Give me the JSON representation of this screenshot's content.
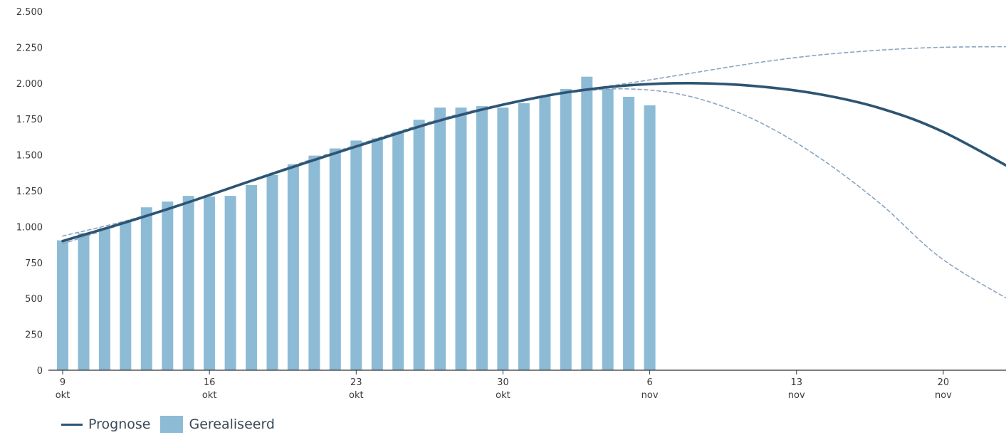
{
  "colors": {
    "bar": "#8dbbd6",
    "forecast": "#2d5573",
    "band": "#8ba5c0",
    "axis": "#333333",
    "text": "#3a3a3a"
  },
  "legend": {
    "forecast_label": "Prognose",
    "bars_label": "Gerealiseerd"
  },
  "chart_data": {
    "type": "bar",
    "ylim": [
      0,
      2500
    ],
    "yticks": [
      0,
      250,
      500,
      750,
      1000,
      1250,
      1500,
      1750,
      2000,
      2250,
      2500
    ],
    "ytick_labels": [
      "0",
      "250",
      "500",
      "750",
      "1.000",
      "1.250",
      "1.500",
      "1.750",
      "2.000",
      "2.250",
      "2.500"
    ],
    "x_start": "2020-10-09",
    "x_end": "2020-11-24",
    "xticks": [
      {
        "date": "2020-10-09",
        "day": "9",
        "month": "okt"
      },
      {
        "date": "2020-10-16",
        "day": "16",
        "month": "okt"
      },
      {
        "date": "2020-10-23",
        "day": "23",
        "month": "okt"
      },
      {
        "date": "2020-10-30",
        "day": "30",
        "month": "okt"
      },
      {
        "date": "2020-11-06",
        "day": "6",
        "month": "nov"
      },
      {
        "date": "2020-11-13",
        "day": "13",
        "month": "nov"
      },
      {
        "date": "2020-11-20",
        "day": "20",
        "month": "nov"
      }
    ],
    "series": [
      {
        "name": "Gerealiseerd",
        "type": "bar",
        "x": [
          "2020-10-09",
          "2020-10-10",
          "2020-10-11",
          "2020-10-12",
          "2020-10-13",
          "2020-10-14",
          "2020-10-15",
          "2020-10-16",
          "2020-10-17",
          "2020-10-18",
          "2020-10-19",
          "2020-10-20",
          "2020-10-21",
          "2020-10-22",
          "2020-10-23",
          "2020-10-24",
          "2020-10-25",
          "2020-10-26",
          "2020-10-27",
          "2020-10-28",
          "2020-10-29",
          "2020-10-30",
          "2020-10-31",
          "2020-11-01",
          "2020-11-02",
          "2020-11-03",
          "2020-11-04",
          "2020-11-05",
          "2020-11-06"
        ],
        "values": [
          905,
          955,
          990,
          1035,
          1135,
          1175,
          1215,
          1210,
          1215,
          1290,
          1360,
          1435,
          1495,
          1545,
          1600,
          1615,
          1660,
          1745,
          1830,
          1830,
          1840,
          1830,
          1860,
          1910,
          1960,
          2045,
          1960,
          1905,
          1845
        ]
      },
      {
        "name": "Prognose",
        "type": "line",
        "x": [
          "2020-10-09",
          "2020-10-12",
          "2020-10-15",
          "2020-10-18",
          "2020-10-21",
          "2020-10-24",
          "2020-10-27",
          "2020-10-30",
          "2020-11-02",
          "2020-11-05",
          "2020-11-08",
          "2020-11-11",
          "2020-11-14",
          "2020-11-17",
          "2020-11-20",
          "2020-11-24"
        ],
        "values": [
          900,
          1030,
          1170,
          1320,
          1465,
          1605,
          1740,
          1850,
          1935,
          1985,
          2000,
          1980,
          1925,
          1825,
          1660,
          1345
        ]
      },
      {
        "type": "line",
        "style": "dashed",
        "x": [
          "2020-10-09",
          "2020-10-12",
          "2020-10-15",
          "2020-10-18",
          "2020-10-21",
          "2020-10-24",
          "2020-10-27",
          "2020-10-30",
          "2020-11-02",
          "2020-11-05",
          "2020-11-08",
          "2020-11-11",
          "2020-11-14",
          "2020-11-17",
          "2020-11-20",
          "2020-11-24"
        ],
        "values": [
          880,
          1025,
          1175,
          1325,
          1475,
          1615,
          1750,
          1855,
          1935,
          2000,
          2070,
          2140,
          2195,
          2230,
          2250,
          2255
        ]
      },
      {
        "type": "line",
        "style": "dashed",
        "x": [
          "2020-10-09",
          "2020-10-12",
          "2020-10-15",
          "2020-10-18",
          "2020-10-21",
          "2020-10-24",
          "2020-10-27",
          "2020-10-30",
          "2020-11-02",
          "2020-11-05",
          "2020-11-08",
          "2020-11-11",
          "2020-11-14",
          "2020-11-17",
          "2020-11-20",
          "2020-11-24"
        ],
        "values": [
          935,
          1040,
          1170,
          1320,
          1460,
          1600,
          1735,
          1850,
          1930,
          1960,
          1905,
          1745,
          1490,
          1160,
          770,
          420
        ]
      }
    ]
  }
}
